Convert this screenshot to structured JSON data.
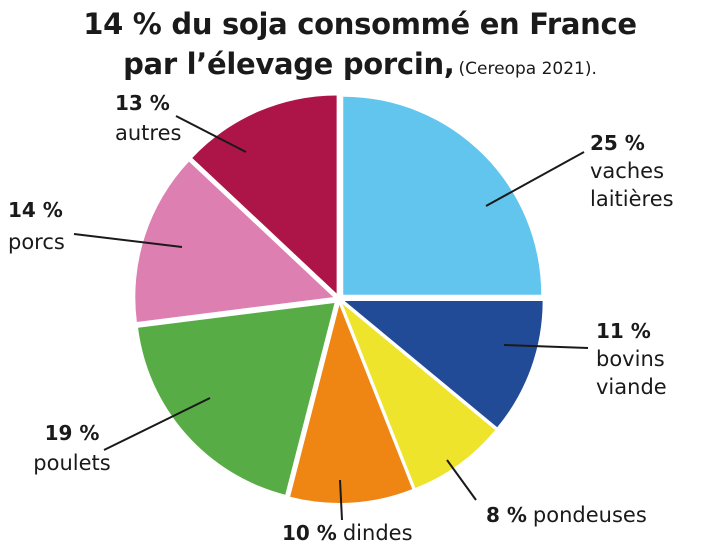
{
  "title": {
    "line1": "14 % du soja consommé en France",
    "line2": "par l’élevage porcin,",
    "source": "(Cereopa 2021)."
  },
  "chart_data": {
    "type": "pie",
    "title": "14 % du soja consommé en France par l’élevage porcin, (Cereopa 2021).",
    "slices": [
      {
        "label_pct": "25 %",
        "label_lines": [
          "vaches",
          "laitières"
        ],
        "value": 25,
        "color": "#62C5EE"
      },
      {
        "label_pct": "11 %",
        "label_lines": [
          "bovins",
          "viande"
        ],
        "value": 11,
        "color": "#214A97"
      },
      {
        "label_pct": "8 %",
        "label_lines": [
          "pondeuses"
        ],
        "value": 8,
        "color": "#EFE42C"
      },
      {
        "label_pct": "10 %",
        "label_lines": [
          "dindes"
        ],
        "value": 10,
        "color": "#EF8613"
      },
      {
        "label_pct": "19 %",
        "label_lines": [
          "poulets"
        ],
        "value": 19,
        "color": "#58AC45"
      },
      {
        "label_pct": "14 %",
        "label_lines": [
          "porcs"
        ],
        "value": 14,
        "color": "#DE7FB1"
      },
      {
        "label_pct": "13 %",
        "label_lines": [
          "autres"
        ],
        "value": 13,
        "color": "#AD1548"
      }
    ]
  }
}
